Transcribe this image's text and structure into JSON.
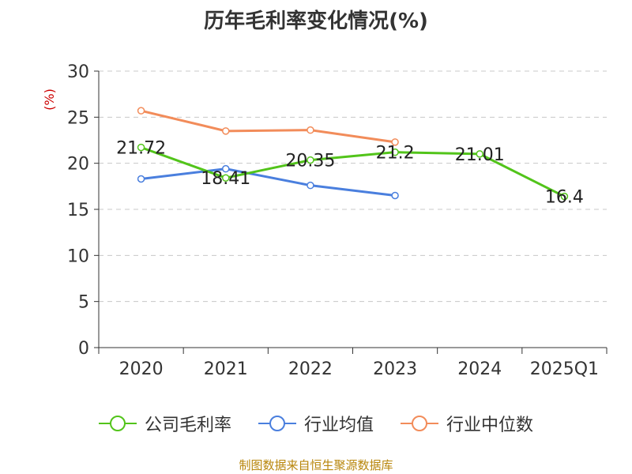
{
  "chart_data": {
    "type": "line",
    "title": "历年毛利率变化情况(%)",
    "unit_label": "(%)",
    "categories": [
      "2020",
      "2021",
      "2022",
      "2023",
      "2024",
      "2025Q1"
    ],
    "ylim": [
      0,
      30
    ],
    "yticks": [
      0,
      5,
      10,
      15,
      20,
      25,
      30
    ],
    "grid": true,
    "legend_position": "bottom",
    "series": [
      {
        "name": "公司毛利率",
        "color": "#52c41a",
        "values": [
          21.72,
          18.41,
          20.35,
          21.2,
          21.01,
          16.4
        ],
        "labels": [
          "21.72",
          "18.41",
          "20.35",
          "21.2",
          "21.01",
          "16.4"
        ]
      },
      {
        "name": "行业均值",
        "color": "#4a7fde",
        "values": [
          18.3,
          19.4,
          17.6,
          16.5,
          null,
          null
        ]
      },
      {
        "name": "行业中位数",
        "color": "#f28c5a",
        "values": [
          25.7,
          23.5,
          23.6,
          22.3,
          null,
          null
        ]
      }
    ]
  },
  "source": "制图数据来自恒生聚源数据库"
}
